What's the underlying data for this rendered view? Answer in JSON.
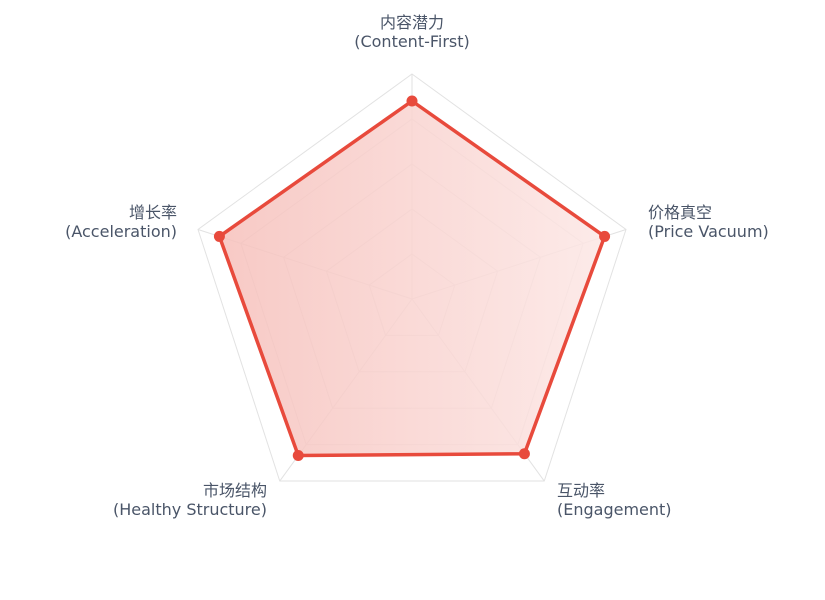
{
  "chart_data": {
    "type": "radar",
    "indicators": [
      {
        "name_cn": "内容潜力",
        "name_en": "(Content-First)",
        "max": 100
      },
      {
        "name_cn": "价格真空",
        "name_en": "(Price Vacuum)",
        "max": 100
      },
      {
        "name_cn": "互动率",
        "name_en": "(Engagement)",
        "max": 100
      },
      {
        "name_cn": "市场结构",
        "name_en": "(Healthy Structure)",
        "max": 100
      },
      {
        "name_cn": "增长率",
        "name_en": "(Acceleration)",
        "max": 100
      }
    ],
    "series": [
      {
        "values": [
          88,
          90,
          85,
          86,
          90
        ]
      }
    ],
    "split_number": 5,
    "colors": {
      "line": "#e84a3c",
      "area_inner": "#f6c0bb",
      "area_outer": "#fce7e5",
      "grid": "#e2e2e2",
      "label": "#4a5568"
    }
  }
}
